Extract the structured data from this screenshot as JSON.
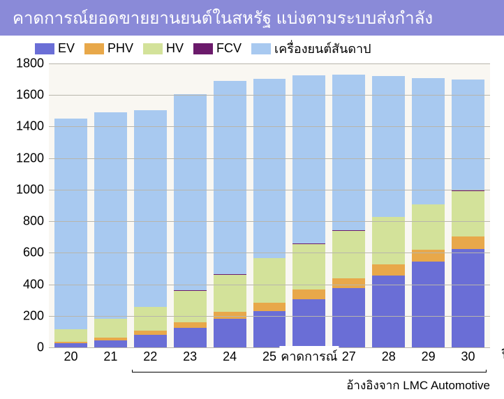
{
  "title": "คาดการณ์ยอดขายยานยนต์ในสหรัฐ แบ่งตามระบบส่งกำลัง",
  "legend": {
    "items": [
      {
        "label": "EV",
        "color": "#6a6ed6"
      },
      {
        "label": "PHV",
        "color": "#e8a84a"
      },
      {
        "label": "HV",
        "color": "#d3e29a"
      },
      {
        "label": "FCV",
        "color": "#6b1a6b"
      },
      {
        "label": "เครื่องยนต์สันดาป",
        "color": "#a8c9f0"
      }
    ]
  },
  "chart": {
    "type": "stacked-bar",
    "ymax": 1800,
    "ymin": 0,
    "ytick_step": 200,
    "background_color": "#f9f7f2",
    "grid_color": "#b8b5ab",
    "bar_gap_ratio": 0.18,
    "categories": [
      "20",
      "21",
      "22",
      "23",
      "24",
      "25",
      "26",
      "27",
      "28",
      "29",
      "30"
    ],
    "series_order": [
      "EV",
      "PHV",
      "HV",
      "FCV",
      "ICE"
    ],
    "series": {
      "EV": [
        25,
        45,
        80,
        125,
        180,
        230,
        305,
        375,
        455,
        545,
        625
      ],
      "PHV": [
        10,
        15,
        25,
        35,
        45,
        55,
        60,
        65,
        70,
        75,
        80
      ],
      "HV": [
        80,
        120,
        150,
        200,
        235,
        280,
        290,
        300,
        300,
        285,
        285
      ],
      "FCV": [
        0,
        0,
        2,
        2,
        3,
        3,
        3,
        3,
        4,
        4,
        5
      ],
      "ICE": [
        1335,
        1310,
        1245,
        1245,
        1225,
        1135,
        1065,
        985,
        890,
        800,
        705
      ]
    },
    "series_colors": {
      "EV": "#6a6ed6",
      "PHV": "#e8a84a",
      "HV": "#d3e29a",
      "FCV": "#6b1a6b",
      "ICE": "#a8c9f0"
    },
    "x_unit_label": "ปี",
    "forecast": {
      "label": "คาดการณ์",
      "start_index": 2,
      "end_index": 10
    }
  },
  "source": "อ้างอิงจาก LMC Automotive"
}
